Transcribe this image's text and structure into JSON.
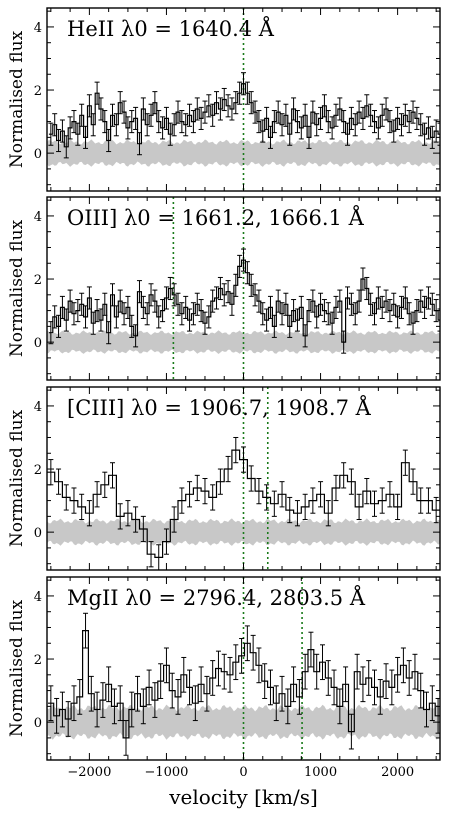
{
  "chart_data": [
    {
      "type": "line",
      "title": "HeII λ0 = 1640.4 Å",
      "ylabel": "Normalised flux",
      "xlim": [
        -2550,
        2550
      ],
      "ylim": [
        -1.2,
        4.6
      ],
      "yticks": [
        0,
        2,
        4
      ],
      "markers": [
        0
      ],
      "x_start": -2500,
      "bin": 50,
      "noise_band": 0.35,
      "values": [
        0.6,
        0.9,
        0.4,
        0.7,
        0.2,
        0.8,
        1.0,
        0.6,
        1.2,
        0.5,
        1.5,
        0.9,
        1.9,
        1.4,
        1.0,
        0.4,
        1.2,
        0.9,
        1.6,
        1.3,
        0.8,
        1.0,
        1.1,
        0.3,
        1.4,
        0.9,
        1.2,
        1.6,
        1.0,
        0.8,
        1.1,
        0.6,
        0.9,
        1.3,
        1.0,
        0.9,
        1.2,
        1.0,
        1.4,
        1.1,
        1.3,
        1.5,
        1.2,
        1.6,
        1.4,
        1.7,
        1.5,
        1.4,
        1.6,
        1.9,
        2.2,
        1.9,
        1.6,
        1.3,
        1.0,
        0.7,
        1.1,
        0.5,
        1.0,
        1.3,
        0.9,
        1.2,
        0.6,
        1.4,
        1.0,
        0.8,
        1.2,
        0.5,
        1.3,
        0.9,
        1.1,
        1.5,
        1.0,
        0.8,
        1.2,
        1.4,
        1.0,
        0.6,
        1.1,
        0.9,
        1.3,
        1.1,
        1.5,
        1.2,
        1.0,
        0.8,
        1.2,
        1.4,
        1.0,
        0.7,
        1.1,
        0.9,
        1.2,
        1.0,
        1.3,
        1.1,
        0.9,
        0.6,
        0.8,
        0.5,
        0.7,
        0.6
      ],
      "errors": 0.35
    },
    {
      "type": "line",
      "title": "OIII] λ0 = 1661.2, 1666.1 Å",
      "ylabel": "Normalised flux",
      "xlim": [
        -2550,
        2550
      ],
      "ylim": [
        -1.2,
        4.6
      ],
      "yticks": [
        0,
        2,
        4
      ],
      "markers": [
        -910,
        0
      ],
      "x_start": -2500,
      "bin": 50,
      "noise_band": 0.3,
      "values": [
        0.3,
        0.8,
        0.5,
        1.1,
        0.7,
        1.3,
        0.9,
        1.0,
        1.2,
        0.8,
        1.4,
        0.6,
        1.0,
        0.7,
        1.2,
        0.3,
        1.5,
        0.8,
        1.3,
        0.9,
        1.1,
        0.5,
        0.2,
        1.6,
        1.1,
        0.9,
        1.5,
        1.3,
        0.8,
        1.0,
        1.4,
        1.7,
        1.5,
        1.2,
        0.9,
        1.1,
        0.7,
        0.9,
        1.2,
        1.0,
        0.6,
        0.8,
        1.3,
        1.4,
        1.7,
        1.5,
        1.6,
        1.2,
        1.8,
        2.4,
        2.6,
        2.2,
        1.8,
        1.5,
        1.3,
        0.9,
        0.7,
        1.1,
        0.5,
        1.3,
        0.9,
        1.2,
        0.5,
        1.0,
        0.7,
        1.1,
        0.2,
        1.0,
        1.3,
        0.8,
        1.2,
        1.0,
        0.9,
        0.6,
        1.1,
        1.3,
        0.0,
        1.4,
        1.2,
        0.9,
        1.3,
        2.0,
        1.7,
        1.2,
        0.9,
        1.4,
        1.1,
        1.3,
        1.0,
        1.2,
        0.8,
        1.1,
        1.4,
        0.9,
        0.6,
        1.0,
        1.3,
        1.1,
        1.4,
        1.2,
        1.0,
        0.7
      ],
      "errors": 0.35
    },
    {
      "type": "line",
      "title": "[CIII] λ0 = 1906.7, 1908.7 Å",
      "ylabel": "Normalised flux",
      "xlim": [
        -2550,
        2550
      ],
      "ylim": [
        -1.2,
        4.6
      ],
      "yticks": [
        0,
        2,
        4
      ],
      "markers": [
        0,
        315
      ],
      "x_start": -2500,
      "bin": 100,
      "noise_band": 0.35,
      "values": [
        1.9,
        1.6,
        1.1,
        1.0,
        0.8,
        0.6,
        1.2,
        1.5,
        1.8,
        0.5,
        0.6,
        0.4,
        0.1,
        -0.7,
        -0.8,
        -0.3,
        0.4,
        1.0,
        1.2,
        1.4,
        1.3,
        1.1,
        1.6,
        2.0,
        2.6,
        2.3,
        1.7,
        1.3,
        1.1,
        0.9,
        1.2,
        0.7,
        0.6,
        0.8,
        1.0,
        1.2,
        0.6,
        1.4,
        1.8,
        1.6,
        0.8,
        1.3,
        0.9,
        1.0,
        1.2,
        0.8,
        2.2,
        1.6,
        1.0,
        1.0,
        0.7
      ],
      "errors": 0.4
    },
    {
      "type": "line",
      "title": "MgII λ0 = 2796.4, 2803.5 Å",
      "ylabel": "Normalised flux",
      "xlabel": "velocity [km/s]",
      "xlim": [
        -2550,
        2550
      ],
      "ylim": [
        -1.2,
        4.6
      ],
      "yticks": [
        0,
        2,
        4
      ],
      "xticks": [
        -2000,
        -1000,
        0,
        1000,
        2000
      ],
      "markers": [
        0,
        760
      ],
      "x_start": -2500,
      "bin": 75,
      "noise_band": 0.45,
      "values": [
        0.6,
        0.2,
        0.4,
        0.1,
        0.6,
        0.8,
        2.9,
        0.9,
        0.4,
        0.7,
        1.2,
        0.5,
        0.6,
        -0.5,
        0.4,
        0.9,
        0.5,
        1.1,
        0.7,
        1.3,
        1.8,
        1.0,
        0.8,
        1.5,
        1.1,
        0.6,
        1.2,
        0.9,
        1.4,
        1.7,
        1.6,
        1.5,
        1.9,
        2.1,
        2.5,
        2.2,
        1.8,
        1.3,
        1.1,
        0.6,
        0.9,
        0.5,
        1.2,
        0.8,
        1.6,
        2.3,
        1.6,
        1.9,
        1.4,
        1.1,
        0.5,
        1.2,
        -0.3,
        1.6,
        1.2,
        1.4,
        1.1,
        0.8,
        1.3,
        1.1,
        1.5,
        1.8,
        1.4,
        1.6,
        1.0,
        0.4,
        0.6,
        0.2,
        0.9,
        0.6,
        1.8,
        1.5,
        0.8,
        0.3,
        0.5
      ],
      "errors": 0.55
    }
  ],
  "colors": {
    "step": "#000000",
    "noise_band": "#c8c8c8",
    "marker_line": "#1a7a1a",
    "frame": "#000000"
  }
}
